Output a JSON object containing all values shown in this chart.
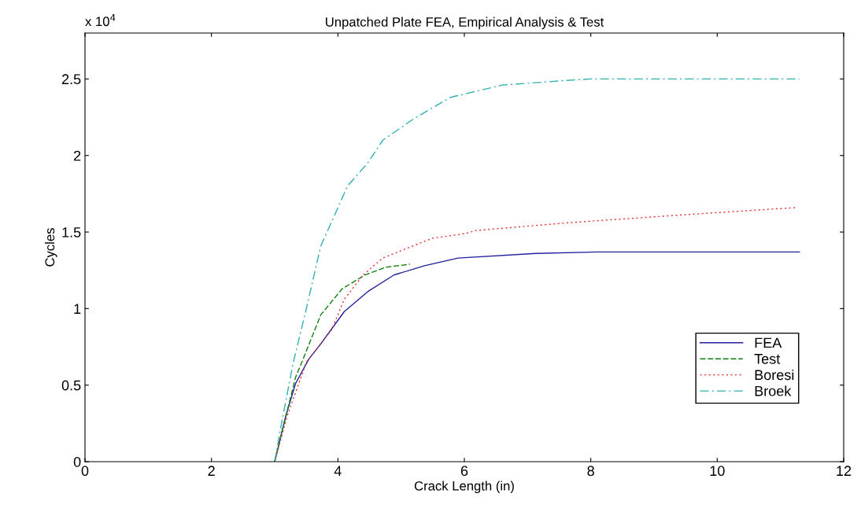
{
  "chart_data": {
    "type": "line",
    "title": "Unpatched Plate FEA, Empirical Analysis & Test",
    "xlabel": "Crack Length (in)",
    "ylabel": "Cycles",
    "annotations": [
      "x 10$^{4}$"
    ],
    "xlim": [
      0,
      12
    ],
    "xticks": [
      0,
      2,
      4,
      6,
      8,
      10,
      12
    ],
    "ylim": [
      0,
      2.8
    ],
    "yticks": [
      0,
      0.5,
      1,
      1.5,
      2,
      2.5
    ],
    "grid": false,
    "legend": "bottom right",
    "series": [
      {
        "name": "FEA",
        "color": "#1f1f9f",
        "line_style": "solid",
        "x": [
          3.0,
          3.17,
          3.33,
          3.54,
          3.73,
          4.1,
          4.47,
          4.89,
          5.37,
          5.9,
          7.13,
          8.1,
          11.3
        ],
        "values": [
          0,
          0.29,
          0.51,
          0.67,
          0.77,
          0.98,
          1.11,
          1.22,
          1.28,
          1.33,
          1.36,
          1.37,
          1.37
        ]
      },
      {
        "name": "Test",
        "color": "#107f10",
        "line_style": "dashed",
        "x": [
          3.0,
          3.33,
          3.45,
          3.73,
          4.07,
          4.43,
          4.76,
          5.14
        ],
        "values": [
          0,
          0.55,
          0.67,
          0.96,
          1.13,
          1.22,
          1.27,
          1.29
        ]
      },
      {
        "name": "Boresi",
        "color": "#e03030",
        "line_style": "dotted",
        "x": [
          3.0,
          3.2,
          3.5,
          3.9,
          4.1,
          4.4,
          4.71,
          5.13,
          5.5,
          6.02,
          6.18,
          7.62,
          9.37,
          11.25
        ],
        "values": [
          0,
          0.3,
          0.65,
          0.86,
          1.06,
          1.22,
          1.33,
          1.4,
          1.46,
          1.49,
          1.51,
          1.56,
          1.61,
          1.66
        ]
      },
      {
        "name": "Broek",
        "color": "#30b0b0",
        "line_style": "dashdot",
        "x": [
          3.0,
          3.09,
          3.29,
          3.49,
          3.73,
          3.98,
          4.15,
          4.47,
          4.71,
          5.2,
          5.78,
          6.6,
          7.6,
          8.0,
          11.3
        ],
        "values": [
          0,
          0.21,
          0.64,
          0.98,
          1.41,
          1.64,
          1.8,
          1.95,
          2.1,
          2.24,
          2.38,
          2.46,
          2.49,
          2.5,
          2.5
        ]
      }
    ]
  }
}
